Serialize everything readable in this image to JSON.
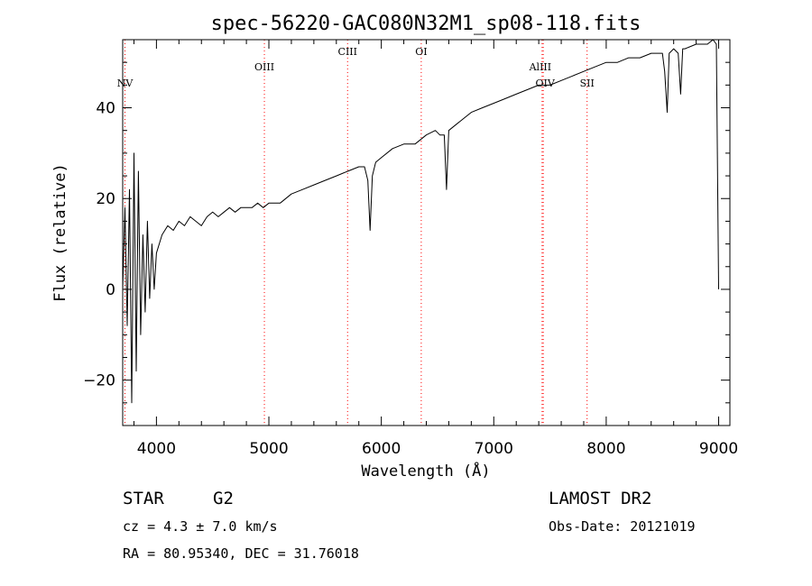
{
  "chart_data": {
    "type": "line",
    "title": "spec-56220-GAC080N32M1_sp08-118.fits",
    "xlabel": "Wavelength (Å)",
    "ylabel": "Flux (relative)",
    "xlim": [
      3700,
      9100
    ],
    "ylim": [
      -30,
      55
    ],
    "x_ticks": [
      4000,
      5000,
      6000,
      7000,
      8000,
      9000
    ],
    "x_tick_labels": [
      "4000",
      "5000",
      "6000",
      "7000",
      "8000",
      "9000"
    ],
    "y_ticks": [
      -20,
      0,
      20,
      40
    ],
    "y_tick_labels": [
      "−20",
      "0",
      "20",
      "40"
    ],
    "grid": false,
    "line_color": "#000000",
    "series": [
      {
        "x": [
          3700,
          3720,
          3740,
          3760,
          3780,
          3800,
          3820,
          3840,
          3860,
          3880,
          3900,
          3920,
          3940,
          3960,
          3980,
          4000,
          4050,
          4100,
          4150,
          4200,
          4250,
          4300,
          4350,
          4400,
          4450,
          4500,
          4550,
          4600,
          4650,
          4700,
          4750,
          4800,
          4850,
          4900,
          4950,
          5000,
          5100,
          5200,
          5300,
          5400,
          5500,
          5600,
          5700,
          5800,
          5850,
          5880,
          5900,
          5920,
          5950,
          6000,
          6100,
          6200,
          6300,
          6400,
          6480,
          6520,
          6560,
          6580,
          6600,
          6700,
          6800,
          6900,
          7000,
          7100,
          7200,
          7300,
          7400,
          7500,
          7600,
          7700,
          7800,
          7900,
          8000,
          8100,
          8200,
          8300,
          8400,
          8450,
          8500,
          8520,
          8542,
          8560,
          8600,
          8640,
          8662,
          8680,
          8700,
          8800,
          8900,
          8950,
          8980,
          9000
        ],
        "y": [
          0,
          18,
          -8,
          22,
          -25,
          30,
          -18,
          26,
          -10,
          12,
          -5,
          15,
          -2,
          10,
          0,
          8,
          12,
          14,
          13,
          15,
          14,
          16,
          15,
          14,
          16,
          17,
          16,
          17,
          18,
          17,
          18,
          18,
          18,
          19,
          18,
          19,
          19,
          21,
          22,
          23,
          24,
          25,
          26,
          27,
          27,
          24,
          13,
          25,
          28,
          29,
          31,
          32,
          32,
          34,
          35,
          34,
          34,
          22,
          35,
          37,
          39,
          40,
          41,
          42,
          43,
          44,
          45,
          45,
          46,
          47,
          48,
          49,
          50,
          50,
          51,
          51,
          52,
          52,
          52,
          48,
          39,
          52,
          53,
          52,
          43,
          53,
          53,
          54,
          54,
          55,
          54,
          0
        ]
      }
    ],
    "lines": [
      {
        "name": "NV",
        "x": 3720
      },
      {
        "name": "OIII",
        "x": 4960
      },
      {
        "name": "CIII",
        "x": 5700
      },
      {
        "name": "OI",
        "x": 6355
      },
      {
        "name": "AlIII",
        "x": 7430
      },
      {
        "name": "OIV",
        "x": 7440
      },
      {
        "name": "SII",
        "x": 7830
      }
    ],
    "line_color_marker": "#ff0000"
  },
  "info": {
    "class": "STAR",
    "subclass": "G2",
    "cz": "cz = 4.3 ± 7.0 km/s",
    "coords": "RA =  80.95340, DEC =  31.76018",
    "survey": "LAMOST DR2",
    "obs_date": "Obs-Date: 20121019"
  }
}
